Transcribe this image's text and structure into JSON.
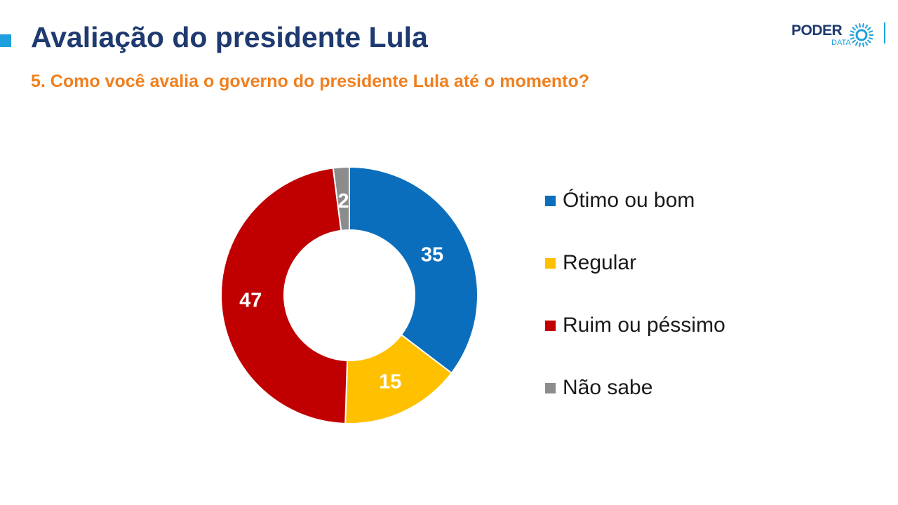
{
  "header": {
    "title": "Avaliação do presidente Lula",
    "subtitle": "5. Como você avalia o governo do presidente Lula até o momento?"
  },
  "logo": {
    "word": "PODER",
    "sub": "DATA",
    "color_primary": "#1f3a70",
    "color_accent": "#1ea0dc"
  },
  "chart_data": {
    "type": "pie",
    "variant": "donut",
    "legend_placement": "right",
    "categories": [
      "Ótimo ou bom",
      "Regular",
      "Ruim ou péssimo",
      "Não sabe"
    ],
    "values": [
      35,
      15,
      47,
      2
    ],
    "colors": [
      "#0a6ebd",
      "#ffc000",
      "#c00000",
      "#8c8c8c"
    ]
  }
}
